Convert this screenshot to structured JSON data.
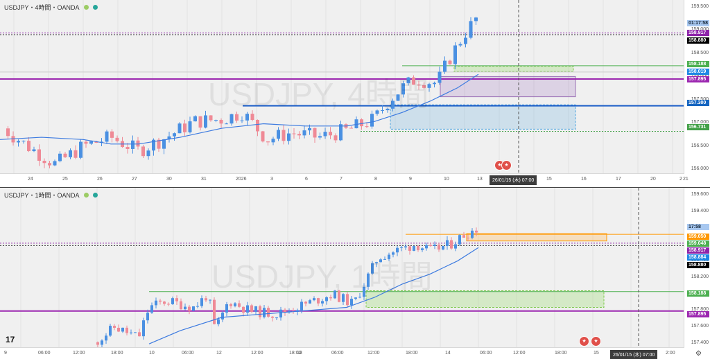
{
  "pane1": {
    "title": "USDJPY・4時間・OANDA",
    "watermark": "USDJPY, 4時間",
    "x_ticks": [
      "24",
      "25",
      "26",
      "27",
      "30",
      "31",
      "2026",
      "3",
      "6",
      "7",
      "8",
      "9",
      "10",
      "13",
      "14",
      "15",
      "16",
      "17",
      "20",
      "21",
      "2"
    ],
    "y_ticks": [
      "159.500",
      "159.000",
      "158.500",
      "158.000",
      "157.500",
      "157.000",
      "156.500",
      "156.000"
    ],
    "time_tag": "01:17:58",
    "price_tags": [
      {
        "label": "158.917",
        "color": "#8e24aa"
      },
      {
        "label": "158.880",
        "color": "#000000"
      },
      {
        "label": "158.188",
        "color": "#4caf50"
      },
      {
        "label": "158.019",
        "color": "#1e88e5"
      },
      {
        "label": "157.895",
        "color": "#9c27b0"
      },
      {
        "label": "157.300",
        "color": "#1565c0"
      },
      {
        "label": "156.731",
        "color": "#43a047"
      }
    ],
    "date_label": "26/01/15 (木)  07:00",
    "y_range": [
      155.8,
      159.65
    ]
  },
  "pane2": {
    "title": "USDJPY・1時間・OANDA",
    "watermark": "USDJPY, 1時間",
    "x_ticks": [
      "9",
      "06:00",
      "12:00",
      "18:00",
      "10",
      "06:00",
      "12",
      "12:00",
      "18:00",
      "13",
      "06:00",
      "12:00",
      "18:00",
      "14",
      "06:00",
      "12:00",
      "18:00",
      "15",
      "2:00"
    ],
    "y_ticks": [
      "159.600",
      "159.400",
      "159.200",
      "158.600",
      "158.400",
      "158.200",
      "158.000",
      "157.800",
      "157.600",
      "157.400"
    ],
    "time_tag": "17:58",
    "price_tags": [
      {
        "label": "159.050",
        "color": "#ff9800"
      },
      {
        "label": "159.048",
        "color": "#4caf50"
      },
      {
        "label": "158.917",
        "color": "#8e24aa"
      },
      {
        "label": "158.884",
        "color": "#1e88e5"
      },
      {
        "label": "158.880",
        "color": "#000000"
      },
      {
        "label": "158.188",
        "color": "#4caf50"
      },
      {
        "label": "157.895",
        "color": "#9c27b0"
      }
    ],
    "date_label": "26/01/15 (木)  07:00",
    "y_range": [
      157.35,
      159.75
    ]
  },
  "colors": {
    "up": "#4a90e2",
    "down": "#ef8a96",
    "ma": "#3d7be0"
  }
}
